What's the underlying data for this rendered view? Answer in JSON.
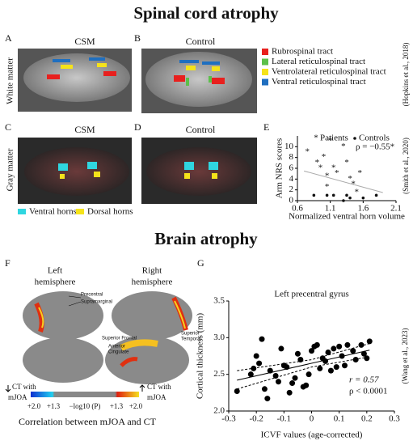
{
  "titles": {
    "top": "Spinal cord atrophy",
    "bottom": "Brain atrophy"
  },
  "panel_labels": {
    "A": "A",
    "B": "B",
    "C": "C",
    "D": "D",
    "E": "E",
    "F": "F",
    "G": "G"
  },
  "spinal": {
    "cols": {
      "A": "CSM",
      "B": "Control",
      "C": "CSM",
      "D": "Control"
    },
    "rows": [
      "White matter",
      "Gray matter"
    ],
    "tract_legend": [
      {
        "name": "Rubrospinal tract",
        "color": "#e8201e"
      },
      {
        "name": "Lateral reticulospinal tract",
        "color": "#5cc04a"
      },
      {
        "name": "Ventrolateral reticulospinal tract",
        "color": "#f5e31a"
      },
      {
        "name": "Ventral reticulospinal tract",
        "color": "#1f6fc0"
      }
    ],
    "horn_legend": [
      {
        "name": "Ventral horns",
        "color": "#2fd6e0"
      },
      {
        "name": "Dorsal horns",
        "color": "#f5e31a"
      }
    ],
    "citations": [
      "(Hopkins et al., 2018)",
      "(Smith et al., 2020)"
    ]
  },
  "brain": {
    "left": [
      "Left",
      "hemisphere"
    ],
    "right": [
      "Right",
      "hemisphere"
    ],
    "regions": [
      "Precentral",
      "Supramarginal",
      "Superior Frontal",
      "Anterior",
      "Cingulate",
      "Superior",
      "Temporal"
    ],
    "colorbar": {
      "ticks": [
        "+2.0",
        "+1.3",
        "−log10 (P)",
        "+1.3",
        "+2.0"
      ],
      "left": [
        "CT with",
        "mJOA"
      ],
      "right": [
        "CT with",
        "mJOA"
      ]
    },
    "caption": "Correlation between mJOA and CT",
    "citation": "(Wang et al., 2023)"
  },
  "chart_data": [
    {
      "type": "scatter",
      "xlabel": "Normalized ventral horn volume",
      "ylabel": "Arm NRS scores",
      "xlim": [
        0.6,
        2.1
      ],
      "xticks": [
        0.6,
        1.1,
        1.6,
        2.1
      ],
      "ylim": [
        0,
        12
      ],
      "yticks": [
        0,
        2,
        4,
        6,
        8,
        10
      ],
      "annotation": "ρ = −0.55*",
      "series": [
        {
          "name": "Patients",
          "color": "#999999",
          "marker": "star",
          "x": [
            0.75,
            0.9,
            0.95,
            1.0,
            1.05,
            1.05,
            1.1,
            1.15,
            1.2,
            1.3,
            1.35,
            1.4,
            1.45,
            1.5,
            1.55
          ],
          "values": [
            9,
            7,
            6,
            8,
            2.5,
            4.5,
            11,
            6,
            5,
            10,
            7,
            4,
            3,
            1.5,
            5
          ]
        },
        {
          "name": "Controls",
          "color": "#111111",
          "marker": "dot",
          "x": [
            0.85,
            1.05,
            1.15,
            1.3,
            1.35,
            1.4,
            1.6,
            1.8
          ],
          "values": [
            1,
            1,
            1,
            0,
            1,
            0.5,
            0.5,
            1
          ]
        }
      ],
      "fit_lines": [
        {
          "x": [
            0.7,
            1.9
          ],
          "values": [
            5.5,
            1.5
          ],
          "color": "#aaaaaa",
          "dash": false
        }
      ]
    },
    {
      "type": "scatter",
      "title": "Left precentral gyrus",
      "xlabel": "ICVF values (age-corrected)",
      "ylabel": "Cortical thickness (mm)",
      "xlim": [
        -0.3,
        0.3
      ],
      "xticks": [
        -0.3,
        -0.2,
        -0.1,
        0,
        0.1,
        0.2,
        0.3
      ],
      "ylim": [
        2.0,
        3.5
      ],
      "yticks": [
        {
          "value": 2,
          "label": "2.0"
        },
        2.5,
        {
          "value": 3,
          "label": "3.0"
        },
        3.5
      ],
      "annotations": [
        "r = 0.57",
        "ρ < 0.0001"
      ],
      "series": [
        {
          "color": "#000000",
          "marker": "dot",
          "x": [
            -0.27,
            -0.22,
            -0.21,
            -0.2,
            -0.19,
            -0.18,
            -0.17,
            -0.16,
            -0.15,
            -0.13,
            -0.12,
            -0.11,
            -0.1,
            -0.09,
            -0.08,
            -0.07,
            -0.06,
            -0.05,
            -0.04,
            -0.03,
            -0.02,
            -0.01,
            0.0,
            0.01,
            0.02,
            0.03,
            0.04,
            0.05,
            0.06,
            0.07,
            0.08,
            0.09,
            0.1,
            0.11,
            0.12,
            0.13,
            0.15,
            0.16,
            0.18,
            0.19,
            0.2,
            0.21
          ],
          "values": [
            2.27,
            2.5,
            2.58,
            2.75,
            2.65,
            2.98,
            2.3,
            2.17,
            2.55,
            2.48,
            2.4,
            2.85,
            2.62,
            2.6,
            2.25,
            2.38,
            2.45,
            2.78,
            2.7,
            2.33,
            2.35,
            2.5,
            2.82,
            2.88,
            2.9,
            2.58,
            2.72,
            2.68,
            2.8,
            2.55,
            2.85,
            2.6,
            2.88,
            2.75,
            2.62,
            2.9,
            2.82,
            2.7,
            2.9,
            2.78,
            2.72,
            2.95
          ]
        }
      ],
      "fit_lines": [
        {
          "x": [
            -0.27,
            0.21
          ],
          "values": [
            2.42,
            2.83
          ],
          "color": "#000000",
          "dash": false
        },
        {
          "x": [
            -0.27,
            0,
            0.21
          ],
          "values": [
            2.55,
            2.7,
            2.92
          ],
          "color": "#000000",
          "dash": true
        },
        {
          "x": [
            -0.27,
            0,
            0.21
          ],
          "values": [
            2.3,
            2.6,
            2.74
          ],
          "color": "#000000",
          "dash": true
        }
      ]
    }
  ]
}
